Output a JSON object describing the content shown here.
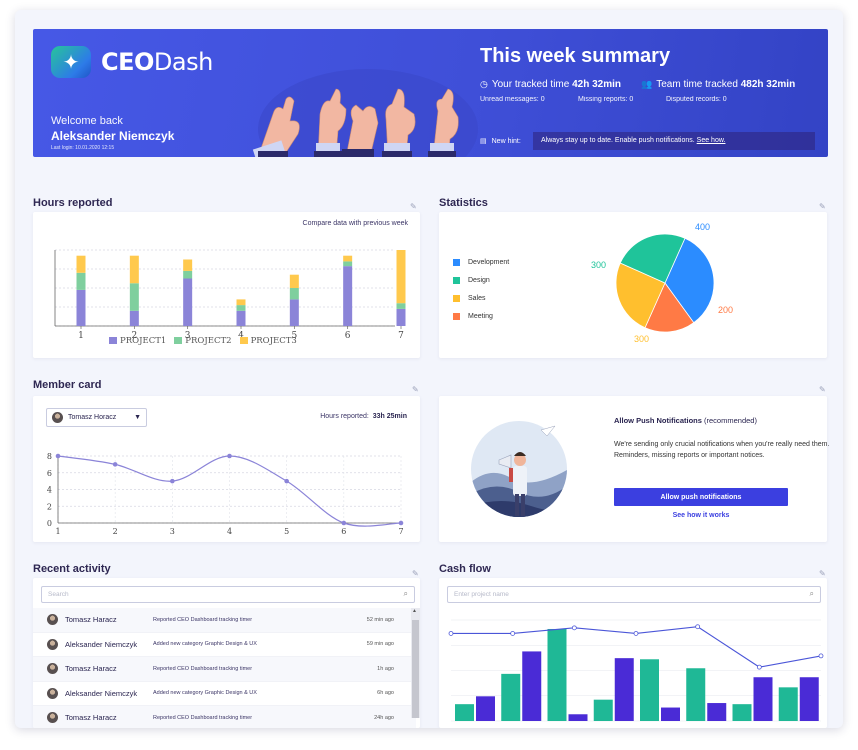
{
  "banner": {
    "logo_bold": "CEO",
    "logo_rest": "Dash",
    "welcome": "Welcome back",
    "user_name": "Aleksander Niemczyk",
    "last_login": "Last login: 10.01.2020 12:15",
    "summary_title": "This week summary",
    "tracked_label": "Your tracked time",
    "tracked_value": "42h 32min",
    "team_label": "Team time tracked",
    "team_value": "482h 32min",
    "unread": "Unread messages: 0",
    "missing": "Missing reports: 0",
    "disputed": "Disputed records: 0",
    "hint_label": "New hint:",
    "hint_text": "Always stay up to date. Enable push notifications.",
    "hint_link": "See how."
  },
  "hours_reported": {
    "title": "Hours reported",
    "caption": "Compare data with previous week"
  },
  "statistics": {
    "title": "Statistics"
  },
  "member_card": {
    "title": "Member card",
    "selected_member": "Tomasz Horacz",
    "hours_label": "Hours reported:",
    "hours_value": "33h 25min"
  },
  "push": {
    "title": "Allow Push Notifications",
    "title_suffix": "(recommended)",
    "text": "We're sending only crucial notifications when you're really need them. Reminders, missing reports or important notices.",
    "button": "Allow push notifications",
    "link": "See how it works"
  },
  "recent_activity": {
    "title": "Recent activity",
    "search_placeholder": "Search",
    "rows": [
      {
        "who": "Tomasz Haracz",
        "what": "Reported CEO Dashboard tracking timer",
        "ago": "52 min ago"
      },
      {
        "who": "Aleksander Niemczyk",
        "what": "Added new category Graphic Design & UX",
        "ago": "59 min ago"
      },
      {
        "who": "Tomasz Haracz",
        "what": "Reported CEO Dashboard tracking timer",
        "ago": "1h ago"
      },
      {
        "who": "Aleksander Niemczyk",
        "what": "Added new category Graphic Design & UX",
        "ago": "6h ago"
      },
      {
        "who": "Tomasz Haracz",
        "what": "Reported CEO Dashboard tracking timer",
        "ago": "24h ago"
      }
    ]
  },
  "cash_flow": {
    "title": "Cash flow",
    "search_placeholder": "Enter project name"
  },
  "colors": {
    "project1": "#8b84d8",
    "project2": "#7fcf9e",
    "project3": "#ffc94d",
    "development": "#2b8cff",
    "design": "#1fc49a",
    "sales": "#ffbf2e",
    "meeting": "#ff7a45",
    "teal": "#1fb896",
    "violet": "#4a2bd6",
    "line": "#4b56d8"
  },
  "chart_data": [
    {
      "type": "bar",
      "stacked": true,
      "categories": [
        "1",
        "2",
        "3",
        "4",
        "5",
        "6",
        "7"
      ],
      "series": [
        {
          "name": "PROJECT1",
          "values": [
            3.8,
            1.6,
            5.0,
            1.6,
            2.8,
            6.3,
            1.8
          ]
        },
        {
          "name": "PROJECT2",
          "values": [
            1.8,
            2.9,
            0.8,
            0.6,
            1.2,
            0.5,
            0.6
          ]
        },
        {
          "name": "PROJECT3",
          "values": [
            1.8,
            2.9,
            1.2,
            0.6,
            1.4,
            0.6,
            5.6
          ]
        }
      ],
      "ylim": [
        0,
        8
      ],
      "legend": "bottom",
      "grid": true
    },
    {
      "type": "pie",
      "labels": [
        "Development",
        "Design",
        "Sales",
        "Meeting"
      ],
      "values": [
        400,
        300,
        300,
        200
      ],
      "legend": "left"
    },
    {
      "type": "line",
      "x": [
        1,
        2,
        3,
        4,
        5,
        6,
        7
      ],
      "y": [
        8,
        7,
        5,
        8,
        5,
        0,
        0
      ],
      "ylim": [
        0,
        8
      ],
      "yticks": [
        0,
        2,
        4,
        6,
        8
      ],
      "grid": true
    },
    {
      "type": "bar",
      "series": [
        {
          "name": "",
          "values": [
            1.5,
            4.2,
            8.2,
            1.9,
            5.5,
            4.7,
            1.5,
            3.0
          ]
        },
        {
          "name": "",
          "values": [
            2.2,
            6.2,
            0.6,
            5.6,
            1.2,
            1.6,
            3.9,
            3.9
          ]
        }
      ],
      "line": [
        7.8,
        7.8,
        8.3,
        7.8,
        8.4,
        4.8,
        5.8
      ],
      "ylim": [
        0,
        9
      ],
      "grid": true
    }
  ]
}
